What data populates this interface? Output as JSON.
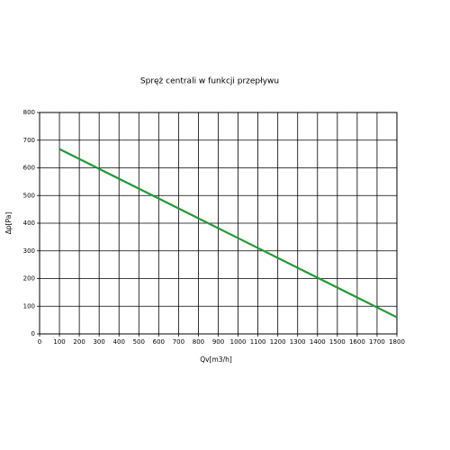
{
  "chart_data": {
    "type": "line",
    "title": "Spręż centrali w funkcji przepływu",
    "x_label": "Qv[m3/h]",
    "y_label": "Δp[Pa]",
    "x": [
      100,
      1800
    ],
    "values": [
      668,
      60
    ],
    "color": "#22983a",
    "xlim": [
      0,
      1800
    ],
    "xticks": [
      0,
      100,
      200,
      300,
      400,
      500,
      600,
      700,
      800,
      900,
      1000,
      1100,
      1200,
      1300,
      1400,
      1500,
      1600,
      1700,
      1800
    ],
    "ylim": [
      0,
      800
    ],
    "yticks": [
      0,
      100,
      200,
      300,
      400,
      500,
      600,
      700,
      800
    ],
    "grid": true
  }
}
